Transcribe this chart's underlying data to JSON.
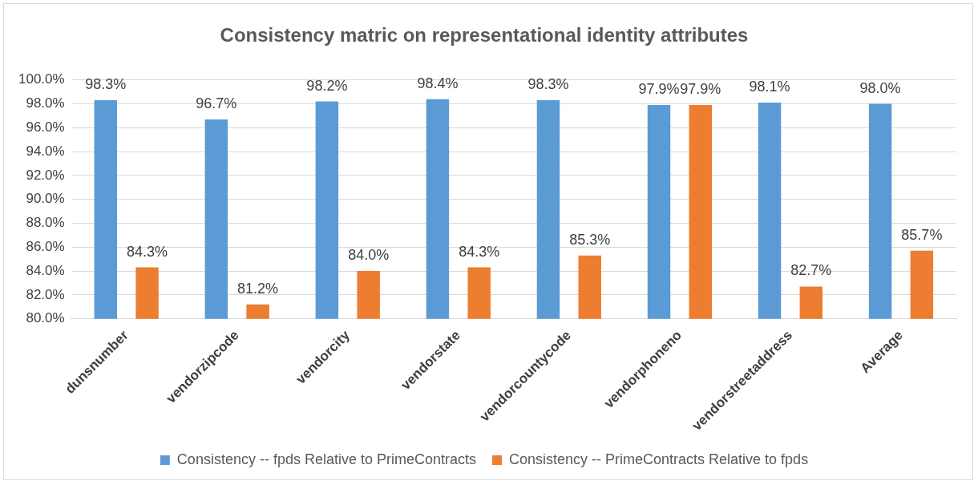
{
  "chart_data": {
    "type": "bar",
    "title": "Consistency matric on representational identity attributes",
    "categories": [
      "dunsnumber",
      "vendorzipcode",
      "vendorcity",
      "vendorstate",
      "vendorcountycode",
      "vendorphoneno",
      "vendorstreetaddress",
      "Average"
    ],
    "series": [
      {
        "name": "Consistency -- fpds Relative to PrimeContracts",
        "color": "#5b9bd5",
        "values": [
          98.3,
          96.7,
          98.2,
          98.4,
          98.3,
          97.9,
          98.1,
          98.0
        ],
        "value_labels": [
          "98.3%",
          "96.7%",
          "98.2%",
          "98.4%",
          "98.3%",
          "97.9%",
          "98.1%",
          "98.0%"
        ]
      },
      {
        "name": "Consistency -- PrimeContracts Relative to fpds",
        "color": "#ed7d31",
        "values": [
          84.3,
          81.2,
          84.0,
          84.3,
          85.3,
          97.9,
          82.7,
          85.7
        ],
        "value_labels": [
          "84.3%",
          "81.2%",
          "84.0%",
          "84.3%",
          "85.3%",
          "97.9%",
          "82.7%",
          "85.7%"
        ]
      }
    ],
    "ylim": [
      80,
      100
    ],
    "yticks": [
      {
        "value": 80,
        "label": "80.0%"
      },
      {
        "value": 82,
        "label": "82.0%"
      },
      {
        "value": 84,
        "label": "84.0%"
      },
      {
        "value": 86,
        "label": "86.0%"
      },
      {
        "value": 88,
        "label": "88.0%"
      },
      {
        "value": 90,
        "label": "90.0%"
      },
      {
        "value": 92,
        "label": "92.0%"
      },
      {
        "value": 94,
        "label": "94.0%"
      },
      {
        "value": 96,
        "label": "96.0%"
      },
      {
        "value": 98,
        "label": "98.0%"
      },
      {
        "value": 100,
        "label": "100.0%"
      }
    ],
    "grid": "y",
    "legend": "bottom"
  }
}
